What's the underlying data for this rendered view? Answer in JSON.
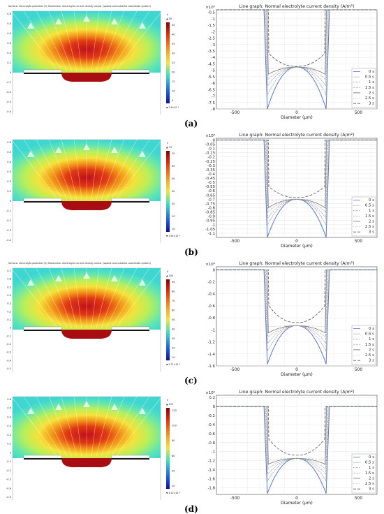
{
  "panels": [
    {
      "label": "(a)",
      "surface": {
        "title": "Surface: electrolyte potential (V) Streamline: electrolyte current density vector (spatial and material coordinate system)",
        "cb_unit": "V",
        "cb_top": "▲ 50",
        "cb_bottom": "▼ 2.6×10⁻³",
        "cb_ticks": [
          "45",
          "40",
          "35",
          "30",
          "25",
          "20",
          "15",
          "10",
          "5"
        ],
        "x_unit": "mm",
        "xticks": [
          "-0.6",
          "-0.4",
          "-0.2",
          "0",
          "0.2",
          "0.4"
        ],
        "yticks": [
          "0.6",
          "0.5",
          "0.4",
          "0.3",
          "0.2",
          "0.1",
          "0",
          "-0.1",
          "-0.2",
          "-0.3",
          "-0.4"
        ]
      }
    },
    {
      "label": "(b)",
      "surface": {
        "title": "",
        "cb_unit": "V",
        "cb_top": "▲ 75",
        "cb_bottom": "▼ 2.65×10⁻³",
        "cb_ticks": [
          "70",
          "60",
          "50",
          "40",
          "30",
          "20",
          "10"
        ],
        "x_unit": "mm",
        "xticks": [
          "-0.6",
          "-0.4",
          "-0.2",
          "0",
          "0.2",
          "0.4"
        ],
        "yticks": [
          "0.6",
          "0.5",
          "0.4",
          "0.3",
          "0.2",
          "0.1",
          "0",
          "-0.1",
          "-0.2",
          "-0.3",
          "-0.4"
        ]
      }
    },
    {
      "label": "(c)",
      "surface": {
        "title": "Surface: electrolyte potential (V) Streamline: electrolyte current density vector (spatial and material coordinate system)",
        "cb_unit": "V",
        "cb_top": "▲ 100",
        "cb_bottom": "▼ 2.71×10⁻³",
        "cb_ticks": [
          "90",
          "80",
          "70",
          "60",
          "50",
          "40",
          "30",
          "20",
          "10"
        ],
        "x_unit": "mm",
        "xticks": [
          "-0.6",
          "-0.4",
          "-0.2",
          "0",
          "0.2",
          "0.4"
        ],
        "yticks": [
          "0.7",
          "0.6",
          "0.5",
          "0.4",
          "0.3",
          "0.2",
          "0.1",
          "0",
          "-0.1",
          "-0.2",
          "-0.3",
          "-0.4",
          "-0.5"
        ]
      }
    },
    {
      "label": "(d)",
      "surface": {
        "title": "",
        "cb_unit": "V",
        "cb_top": "▲ 125",
        "cb_bottom": "▼ 4.12×10⁻³",
        "cb_ticks": [
          "120",
          "100",
          "80",
          "60",
          "40",
          "20"
        ],
        "x_unit": "mm",
        "xticks": [
          "-0.6",
          "-0.4",
          "-0.2",
          "0",
          "0.2",
          "0.4"
        ],
        "yticks": [
          "0.6",
          "0.5",
          "0.4",
          "0.3",
          "0.2",
          "0.1",
          "0",
          "-0.1",
          "-0.2",
          "-0.3",
          "-0.4",
          "-0.5"
        ]
      }
    }
  ],
  "colors": {
    "series": [
      "#555555",
      "#9a9a9a",
      "#8080a0",
      "#b5b5b5",
      "#6a6a6a",
      "#bdbdbd",
      "#3a3a3a"
    ],
    "rings": [
      "#5a7ec4",
      "#7a94c8",
      "#9bb1d9",
      "#bfcbe6",
      "#d9dfee",
      "#e4e8f2"
    ],
    "deep": "#5577cc"
  },
  "chart_data": [
    {
      "type": "line",
      "title": "Line graph: Normal electrolyte current density (A/m²)",
      "xlabel": "Diameter (μm)",
      "ylabel": "",
      "scale_note": "×10⁵",
      "xlim": [
        -650,
        650
      ],
      "ylim": [
        -8,
        -0.3
      ],
      "xticks": [
        -500,
        0,
        500
      ],
      "yticks": [
        -0.5,
        -1,
        -1.5,
        -2,
        -2.5,
        -3,
        -3.5,
        -4,
        -4.5,
        -5,
        -5.5,
        -6,
        -6.5,
        -7,
        -7.5,
        -8
      ],
      "series": [
        {
          "name": "0 s",
          "values": [
            -0.3,
            -8.0,
            -4.75
          ]
        },
        {
          "name": "0.5 s",
          "values": [
            -0.3,
            -6.9,
            -4.75
          ]
        },
        {
          "name": "1 s",
          "values": [
            -0.3,
            -6.2,
            -4.75
          ]
        },
        {
          "name": "1.5 s",
          "values": [
            -0.3,
            -5.7,
            -4.75
          ]
        },
        {
          "name": "2 s",
          "values": [
            -0.3,
            -5.3,
            -4.75
          ]
        },
        {
          "name": "2.5 s",
          "values": [
            -0.3,
            -4.9,
            -4.75
          ]
        },
        {
          "name": "3 s",
          "values": [
            -0.3,
            -3.7,
            -4.7
          ]
        }
      ]
    },
    {
      "type": "line",
      "title": "Line graph: Normal electrolyte current density (A/m²)",
      "xlabel": "Diameter (μm)",
      "ylabel": "",
      "scale_note": "×10⁶",
      "xlim": [
        -650,
        650
      ],
      "ylim": [
        -1.15,
        0.02
      ],
      "xticks": [
        -500,
        0,
        500
      ],
      "yticks": [
        0,
        -0.05,
        -0.1,
        -0.15,
        -0.2,
        -0.25,
        -0.3,
        -0.35,
        -0.4,
        -0.45,
        -0.5,
        -0.55,
        -0.6,
        -0.65,
        -0.7,
        -0.75,
        -0.8,
        -0.85,
        -0.9,
        -0.95,
        -1,
        -1.05,
        -1.1
      ],
      "series": [
        {
          "name": "0 s",
          "values": [
            0,
            -1.15,
            -0.7
          ]
        },
        {
          "name": "0.5 s",
          "values": [
            0,
            -1.0,
            -0.7
          ]
        },
        {
          "name": "1 s",
          "values": [
            0,
            -0.92,
            -0.7
          ]
        },
        {
          "name": "1.5 s",
          "values": [
            0,
            -0.85,
            -0.7
          ]
        },
        {
          "name": "2 s",
          "values": [
            0,
            -0.8,
            -0.7
          ]
        },
        {
          "name": "2.5 s",
          "values": [
            0,
            -0.72,
            -0.7
          ]
        },
        {
          "name": "3 s",
          "values": [
            0,
            -0.55,
            -0.68
          ]
        }
      ]
    },
    {
      "type": "line",
      "title": "Line graph: Normal electrolyte current density (A/m²)",
      "xlabel": "Diameter (μm)",
      "ylabel": "",
      "scale_note": "×10⁶",
      "xlim": [
        -650,
        650
      ],
      "ylim": [
        -1.6,
        0.05
      ],
      "xticks": [
        -500,
        0,
        500
      ],
      "yticks": [
        0,
        -0.2,
        -0.4,
        -0.6,
        -0.8,
        -1,
        -1.2,
        -1.4,
        -1.6
      ],
      "series": [
        {
          "name": "0 s",
          "values": [
            0,
            -1.57,
            -0.93
          ]
        },
        {
          "name": "0.5 s",
          "values": [
            0,
            -1.35,
            -0.93
          ]
        },
        {
          "name": "1 s",
          "values": [
            0,
            -1.22,
            -0.93
          ]
        },
        {
          "name": "1.5 s",
          "values": [
            0,
            -1.12,
            -0.93
          ]
        },
        {
          "name": "2 s",
          "values": [
            0,
            -1.05,
            -0.93
          ]
        },
        {
          "name": "2.5 s",
          "values": [
            0,
            -0.95,
            -0.93
          ]
        },
        {
          "name": "3 s",
          "values": [
            0,
            -0.6,
            -0.88
          ]
        }
      ]
    },
    {
      "type": "line",
      "title": "Line graph: Normal electrolyte current density (A/m²)",
      "xlabel": "Diameter (μm)",
      "ylabel": "",
      "scale_note": "×10⁶",
      "xlim": [
        -650,
        650
      ],
      "ylim": [
        -1.95,
        0.25
      ],
      "xticks": [
        -500,
        0,
        500
      ],
      "yticks": [
        0.2,
        0,
        -0.2,
        -0.4,
        -0.6,
        -0.8,
        -1,
        -1.2,
        -1.4,
        -1.6,
        -1.8
      ],
      "series": [
        {
          "name": "0 s",
          "values": [
            0,
            -1.93,
            -1.15
          ]
        },
        {
          "name": "0.5 s",
          "values": [
            0,
            -1.65,
            -1.15
          ]
        },
        {
          "name": "1 s",
          "values": [
            0,
            -1.5,
            -1.15
          ]
        },
        {
          "name": "1.5 s",
          "values": [
            0,
            -1.38,
            -1.15
          ]
        },
        {
          "name": "2 s",
          "values": [
            0,
            -1.28,
            -1.15
          ]
        },
        {
          "name": "2.5 s",
          "values": [
            0,
            -1.18,
            -1.15
          ]
        },
        {
          "name": "3 s",
          "values": [
            0,
            -0.72,
            -1.08
          ]
        }
      ]
    }
  ]
}
